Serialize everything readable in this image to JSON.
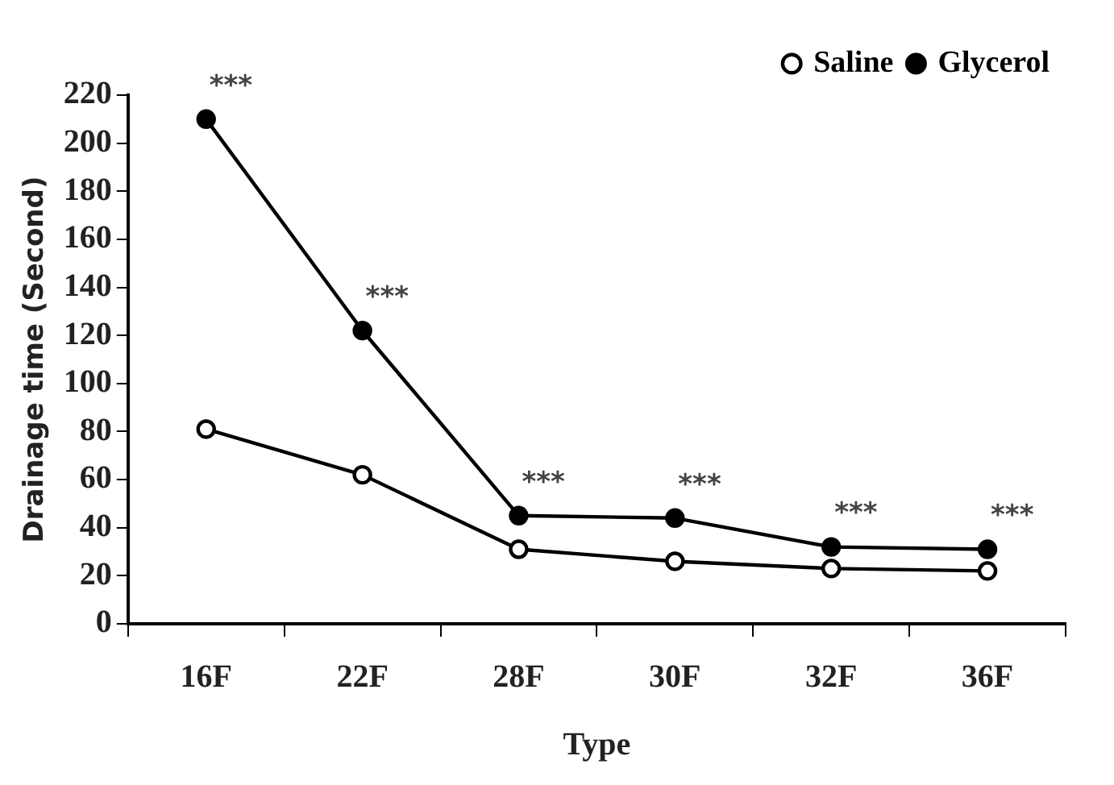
{
  "chart_data": {
    "type": "line",
    "xlabel": "Type",
    "ylabel": "Drainage time (Second)",
    "categories": [
      "16F",
      "22F",
      "28F",
      "30F",
      "32F",
      "36F"
    ],
    "series": [
      {
        "name": "Saline",
        "color": "#000000",
        "values": [
          81,
          62,
          31,
          26,
          23,
          22
        ]
      },
      {
        "name": "Glycerol",
        "color": "#000000",
        "values": [
          210,
          122,
          45,
          44,
          32,
          31
        ]
      }
    ],
    "ylim": [
      0,
      220
    ],
    "yticks": [
      0,
      20,
      40,
      60,
      80,
      100,
      120,
      140,
      160,
      180,
      200,
      220
    ],
    "grid": false,
    "legend": "top right",
    "marker": "circle",
    "line_style": "solid",
    "annotations": [
      {
        "text": "***",
        "x": "16F",
        "y": 210
      },
      {
        "text": "***",
        "x": "22F",
        "y": 122
      },
      {
        "text": "***",
        "x": "28F",
        "y": 45
      },
      {
        "text": "***",
        "x": "30F",
        "y": 44
      },
      {
        "text": "***",
        "x": "32F",
        "y": 32
      },
      {
        "text": "***",
        "x": "36F",
        "y": 31
      }
    ]
  }
}
